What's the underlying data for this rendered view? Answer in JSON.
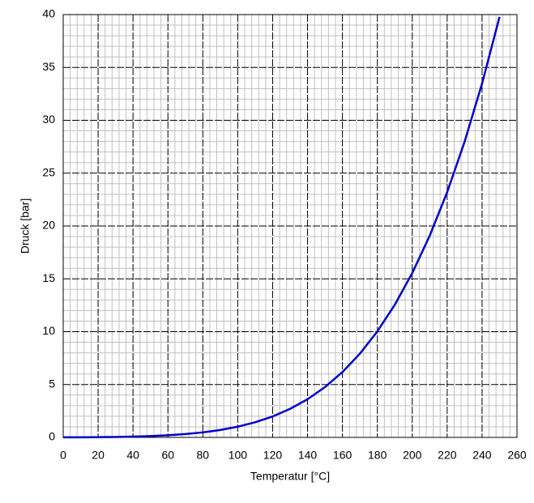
{
  "chart_data": {
    "type": "line",
    "x_label": "Temperatur [°C]",
    "y_label": "Druck [bar]",
    "x": [
      0,
      10,
      20,
      30,
      40,
      50,
      60,
      70,
      80,
      90,
      100,
      110,
      120,
      130,
      140,
      150,
      160,
      170,
      180,
      190,
      200,
      210,
      220,
      230,
      240,
      250
    ],
    "series": [
      {
        "color": "#0000cc",
        "values": [
          0.006,
          0.012,
          0.023,
          0.042,
          0.074,
          0.123,
          0.199,
          0.312,
          0.474,
          0.701,
          1.013,
          1.43,
          1.98,
          2.7,
          3.61,
          4.76,
          6.18,
          7.92,
          10.03,
          12.55,
          15.55,
          19.08,
          23.2,
          27.98,
          33.48,
          39.78
        ]
      }
    ],
    "xlim": [
      0,
      260
    ],
    "xticks": [
      0,
      20,
      40,
      60,
      80,
      100,
      120,
      140,
      160,
      180,
      200,
      220,
      240,
      260
    ],
    "ylim": [
      0,
      40
    ],
    "yticks": [
      0,
      5,
      10,
      15,
      20,
      25,
      30,
      35,
      40
    ],
    "grid": true,
    "minor_grid_divisions": 5
  }
}
